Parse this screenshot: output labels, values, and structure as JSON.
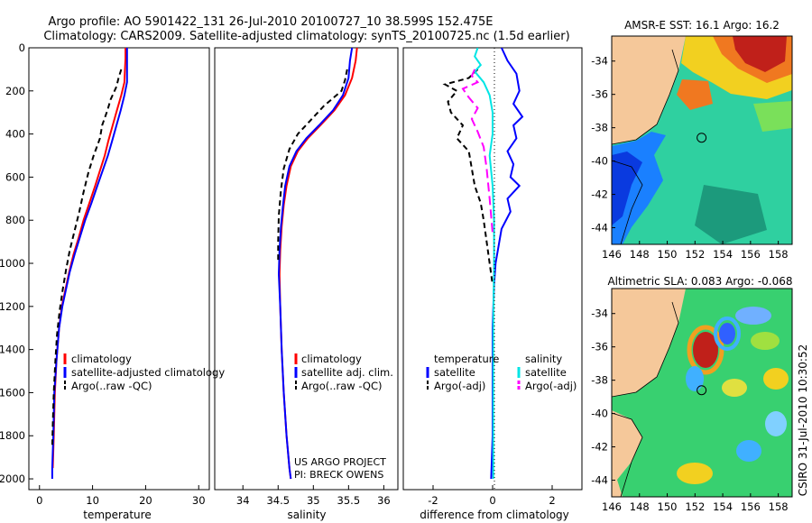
{
  "title": {
    "line1": "Argo profile: AO 5901422_131 26-Jul-2010 20100727_10 38.599S 152.475E",
    "line2": "Climatology: CARS2009. Satellite-adjusted climatology: synTS_20100725.nc (1.5d earlier)"
  },
  "side_label": "CSIRO 31-Jul-2010 10:30:52",
  "project_note": [
    "US ARGO PROJECT",
    "PI: BRECK OWENS"
  ],
  "colors": {
    "climatology": "#ff0000",
    "satellite": "#0000ff",
    "argo": "#000000",
    "sat_sal": "#00e5e5",
    "argo_sal": "#ff00ff",
    "land": "#f5c89a"
  },
  "chart_data": [
    {
      "id": "temperature",
      "type": "line",
      "xlabel": "temperature",
      "xlim": [
        -2,
        32
      ],
      "xticks": [
        0,
        10,
        20,
        30
      ],
      "ylim": [
        0,
        2050
      ],
      "yticks": [
        0,
        200,
        400,
        600,
        800,
        1000,
        1200,
        1400,
        1600,
        1800,
        2000
      ],
      "legend": [
        "climatology",
        "satellite-adjusted climatology",
        "Argo(..raw -QC)"
      ],
      "series": [
        {
          "name": "climatology",
          "color": "#ff0000",
          "dash": "",
          "x": [
            16.2,
            16.2,
            16.1,
            16.0,
            15.4,
            14.6,
            13.8,
            13.0,
            12.3,
            11.4,
            10.5,
            9.4,
            8.3,
            7.4,
            6.4,
            5.6,
            4.9,
            4.2,
            3.7,
            3.2,
            2.9,
            2.7,
            2.5
          ],
          "y": [
            0,
            50,
            100,
            160,
            220,
            290,
            360,
            430,
            500,
            570,
            640,
            720,
            800,
            880,
            960,
            1040,
            1120,
            1200,
            1300,
            1450,
            1600,
            1800,
            1950
          ]
        },
        {
          "name": "satellite-adjusted climatology",
          "color": "#0000ff",
          "dash": "",
          "x": [
            16.5,
            16.5,
            16.5,
            16.5,
            16.0,
            15.3,
            14.5,
            13.7,
            12.9,
            11.9,
            10.9,
            9.8,
            8.6,
            7.6,
            6.6,
            5.7,
            5.0,
            4.3,
            3.7,
            3.2,
            2.8,
            2.6,
            2.4,
            2.4
          ],
          "y": [
            0,
            50,
            100,
            160,
            220,
            290,
            360,
            430,
            500,
            570,
            640,
            720,
            800,
            880,
            960,
            1040,
            1120,
            1200,
            1300,
            1450,
            1600,
            1800,
            1950,
            2000
          ]
        },
        {
          "name": "Argo(..raw -QC)",
          "color": "#000000",
          "dash": "6,4",
          "x": [
            15.4,
            14.9,
            14.5,
            13.4,
            12.8,
            11.8,
            11.4,
            10.2,
            9.2,
            8.3,
            7.5,
            6.6,
            5.7,
            5.0,
            4.4,
            3.8,
            3.3,
            3.0,
            2.7,
            2.5,
            2.4
          ],
          "y": [
            100,
            140,
            180,
            240,
            290,
            360,
            420,
            500,
            580,
            670,
            760,
            850,
            940,
            1030,
            1120,
            1220,
            1330,
            1450,
            1600,
            1750,
            1850
          ]
        }
      ]
    },
    {
      "id": "salinity",
      "type": "line",
      "xlabel": "salinity",
      "xlim": [
        33.6,
        36.2
      ],
      "xticks": [
        34,
        34.5,
        35,
        35.5,
        36
      ],
      "ylim": [
        0,
        2050
      ],
      "legend": [
        "climatology",
        "satellite adj. clim.",
        "Argo(..raw -QC)"
      ],
      "series": [
        {
          "name": "climatology",
          "color": "#ff0000",
          "dash": "",
          "x": [
            35.62,
            35.6,
            35.55,
            35.45,
            35.3,
            35.1,
            34.92,
            34.78,
            34.68,
            34.62,
            34.58,
            34.55,
            34.53,
            34.52,
            34.53,
            34.55,
            34.58,
            34.62,
            34.66,
            34.68
          ],
          "y": [
            0,
            60,
            140,
            220,
            290,
            360,
            420,
            480,
            550,
            640,
            730,
            830,
            940,
            1050,
            1200,
            1400,
            1600,
            1800,
            1950,
            2000
          ]
        },
        {
          "name": "satellite adj. clim.",
          "color": "#0000ff",
          "dash": "",
          "x": [
            35.55,
            35.52,
            35.5,
            35.42,
            35.28,
            35.08,
            34.9,
            34.76,
            34.66,
            34.6,
            34.57,
            34.54,
            34.52,
            34.51,
            34.53,
            34.55,
            34.58,
            34.62,
            34.66,
            34.68
          ],
          "y": [
            0,
            60,
            140,
            220,
            290,
            360,
            420,
            480,
            550,
            640,
            730,
            830,
            940,
            1050,
            1200,
            1400,
            1600,
            1800,
            1950,
            2000
          ]
        },
        {
          "name": "Argo(..raw -QC)",
          "color": "#000000",
          "dash": "6,4",
          "x": [
            35.48,
            35.45,
            35.4,
            35.15,
            34.95,
            34.78,
            34.66,
            34.58,
            34.54,
            34.51,
            34.5,
            34.5
          ],
          "y": [
            100,
            150,
            200,
            270,
            340,
            400,
            470,
            560,
            660,
            780,
            900,
            1000
          ]
        }
      ]
    },
    {
      "id": "difference",
      "type": "line",
      "xlabel": "difference from climatology",
      "xlim": [
        -3,
        3
      ],
      "xticks": [
        -2,
        0,
        2
      ],
      "ylim": [
        0,
        2050
      ],
      "legend_left_title": "temperature",
      "legend_right_title": "salinity",
      "legend": [
        "satellite",
        "Argo(-adj)",
        "satellite",
        "Argo(-adj)"
      ],
      "series": [
        {
          "name": "satellite (temperature)",
          "color": "#0000ff",
          "dash": "",
          "x": [
            0.3,
            0.5,
            0.8,
            0.9,
            0.7,
            1.0,
            0.7,
            0.8,
            0.5,
            0.7,
            0.6,
            0.9,
            0.5,
            0.6,
            0.3,
            0.2,
            0.1,
            0.05,
            0.0,
            0.0,
            0.0,
            -0.05
          ],
          "y": [
            0,
            60,
            120,
            200,
            260,
            320,
            360,
            420,
            480,
            540,
            600,
            640,
            700,
            760,
            840,
            920,
            1000,
            1100,
            1300,
            1500,
            1800,
            2000
          ]
        },
        {
          "name": "Argo(-adj) (temperature)",
          "color": "#000000",
          "dash": "6,4",
          "x": [
            -0.5,
            -0.8,
            -1.6,
            -1.2,
            -1.5,
            -1.4,
            -1.0,
            -1.2,
            -0.8,
            -0.7,
            -0.6,
            -0.4,
            -0.3,
            -0.2,
            -0.1,
            0.0
          ],
          "y": [
            100,
            140,
            170,
            200,
            250,
            300,
            360,
            420,
            480,
            560,
            640,
            720,
            800,
            900,
            1000,
            1100
          ]
        },
        {
          "name": "satellite (salinity)",
          "color": "#00e5e5",
          "dash": "",
          "x": [
            -0.5,
            -0.6,
            -0.4,
            -0.6,
            -0.3,
            -0.1,
            0.0,
            0.0,
            -0.1,
            0.0,
            0.05,
            0.05,
            0.02,
            0.02,
            0.02
          ],
          "y": [
            0,
            40,
            80,
            110,
            160,
            220,
            300,
            400,
            500,
            640,
            800,
            1000,
            1300,
            1700,
            2000
          ]
        },
        {
          "name": "Argo(-adj) (salinity)",
          "color": "#ff00ff",
          "dash": "10,5",
          "x": [
            -0.6,
            -0.7,
            -0.5,
            -1.0,
            -0.8,
            -0.5,
            -0.7,
            -0.5,
            -0.3,
            -0.2,
            -0.1,
            0.0
          ],
          "y": [
            100,
            130,
            160,
            190,
            230,
            280,
            330,
            390,
            460,
            560,
            700,
            860
          ]
        }
      ]
    },
    {
      "id": "sst_map",
      "type": "heatmap",
      "title": "AMSR-E SST: 16.1 Argo: 16.2",
      "xticks": [
        146,
        148,
        150,
        152,
        154,
        156,
        158
      ],
      "yticks": [
        -34,
        -36,
        -38,
        -40,
        -42,
        -44
      ],
      "xlim": [
        146,
        159
      ],
      "ylim": [
        -45,
        -32.5
      ],
      "marker": {
        "lon": 152.475,
        "lat": -38.599
      }
    },
    {
      "id": "sla_map",
      "type": "heatmap",
      "title": "Altimetric SLA: 0.083 Argo: -0.068",
      "xticks": [
        146,
        148,
        150,
        152,
        154,
        156,
        158
      ],
      "yticks": [
        -34,
        -36,
        -38,
        -40,
        -42,
        -44
      ],
      "xlim": [
        146,
        159
      ],
      "ylim": [
        -45,
        -32.5
      ],
      "marker": {
        "lon": 152.475,
        "lat": -38.599
      }
    }
  ]
}
